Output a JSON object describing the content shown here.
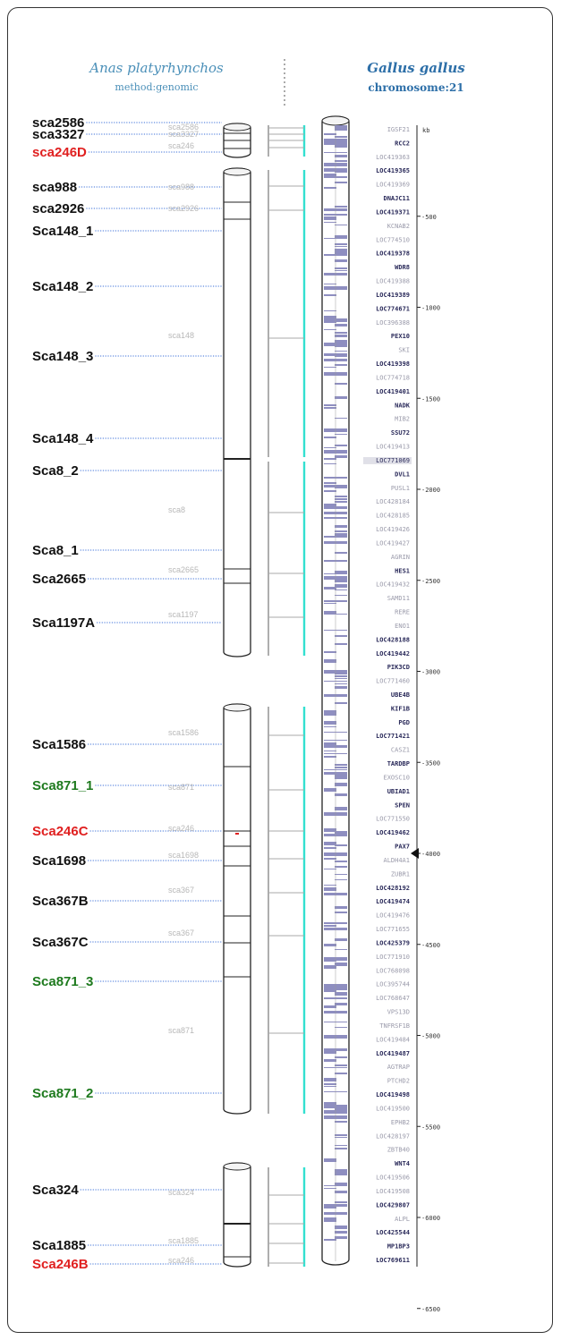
{
  "header": {
    "left_species": "Anas platyrhynchos",
    "left_method": "method:genomic",
    "right_species": "Gallus gallus",
    "right_chromosome": "chromosome:21"
  },
  "scaffold_labels": [
    {
      "text": "sca2586",
      "color": "#111111",
      "kind": "black"
    },
    {
      "text": "sca3327",
      "color": "#111111",
      "kind": "black"
    },
    {
      "text": "sca246D",
      "color": "#e02020",
      "kind": "red"
    },
    {
      "text": "sca988",
      "color": "#111111",
      "kind": "black"
    },
    {
      "text": "sca2926",
      "color": "#111111",
      "kind": "black"
    },
    {
      "text": "Sca148_1",
      "color": "#111111",
      "kind": "black"
    },
    {
      "text": "Sca148_2",
      "color": "#111111",
      "kind": "black"
    },
    {
      "text": "Sca148_3",
      "color": "#111111",
      "kind": "black"
    },
    {
      "text": "Sca148_4",
      "color": "#111111",
      "kind": "black"
    },
    {
      "text": "Sca8_2",
      "color": "#111111",
      "kind": "black"
    },
    {
      "text": "Sca8_1",
      "color": "#111111",
      "kind": "black"
    },
    {
      "text": "Sca2665",
      "color": "#111111",
      "kind": "black"
    },
    {
      "text": "Sca1197A",
      "color": "#111111",
      "kind": "black"
    },
    {
      "text": "Sca1586",
      "color": "#111111",
      "kind": "black"
    },
    {
      "text": "Sca871_1",
      "color": "#1e7a1e",
      "kind": "green"
    },
    {
      "text": "Sca246C",
      "color": "#e02020",
      "kind": "red"
    },
    {
      "text": "Sca1698",
      "color": "#111111",
      "kind": "black"
    },
    {
      "text": "Sca367B",
      "color": "#111111",
      "kind": "black"
    },
    {
      "text": "Sca367C",
      "color": "#111111",
      "kind": "black"
    },
    {
      "text": "Sca871_3",
      "color": "#1e7a1e",
      "kind": "green"
    },
    {
      "text": "Sca871_2",
      "color": "#1e7a1e",
      "kind": "green"
    },
    {
      "text": "Sca324",
      "color": "#111111",
      "kind": "black"
    },
    {
      "text": "Sca1885",
      "color": "#111111",
      "kind": "black"
    },
    {
      "text": "Sca246B",
      "color": "#e02020",
      "kind": "red"
    }
  ],
  "scaffold_ghost_labels": [
    "sca2586",
    "sca3327",
    "sca246",
    "sca988",
    "sca2926",
    "sca148",
    "sca8",
    "sca2665",
    "sca1197",
    "sca1586",
    "sca871",
    "sca246",
    "sca1698",
    "sca367",
    "sca367",
    "sca871",
    "sca324",
    "sca1885",
    "sca246"
  ],
  "genes": [
    {
      "name": "IGSF21",
      "emphasis": "light"
    },
    {
      "name": "RCC2",
      "emphasis": "dark"
    },
    {
      "name": "LOC419363",
      "emphasis": "light"
    },
    {
      "name": "LOC419365",
      "emphasis": "dark"
    },
    {
      "name": "LOC419369",
      "emphasis": "light"
    },
    {
      "name": "DNAJC11",
      "emphasis": "dark"
    },
    {
      "name": "LOC419371",
      "emphasis": "dark"
    },
    {
      "name": "KCNAB2",
      "emphasis": "light"
    },
    {
      "name": "LOC774510",
      "emphasis": "light"
    },
    {
      "name": "LOC419378",
      "emphasis": "dark"
    },
    {
      "name": "WDR8",
      "emphasis": "dark"
    },
    {
      "name": "LOC419388",
      "emphasis": "light"
    },
    {
      "name": "LOC419389",
      "emphasis": "dark"
    },
    {
      "name": "LOC774671",
      "emphasis": "dark"
    },
    {
      "name": "LOC396388",
      "emphasis": "light"
    },
    {
      "name": "PEX10",
      "emphasis": "dark"
    },
    {
      "name": "SKI",
      "emphasis": "light"
    },
    {
      "name": "LOC419398",
      "emphasis": "dark"
    },
    {
      "name": "LOC774718",
      "emphasis": "light"
    },
    {
      "name": "LOC419401",
      "emphasis": "dark"
    },
    {
      "name": "NADK",
      "emphasis": "dark"
    },
    {
      "name": "MIB2",
      "emphasis": "light"
    },
    {
      "name": "SSU72",
      "emphasis": "dark"
    },
    {
      "name": "LOC419413",
      "emphasis": "light"
    },
    {
      "name": "LOC771069",
      "emphasis": "highlight"
    },
    {
      "name": "DVL1",
      "emphasis": "dark"
    },
    {
      "name": "PUSL1",
      "emphasis": "light"
    },
    {
      "name": "LOC428184",
      "emphasis": "light"
    },
    {
      "name": "LOC428185",
      "emphasis": "light"
    },
    {
      "name": "LOC419426",
      "emphasis": "light"
    },
    {
      "name": "LOC419427",
      "emphasis": "light"
    },
    {
      "name": "AGRIN",
      "emphasis": "light"
    },
    {
      "name": "HES1",
      "emphasis": "dark"
    },
    {
      "name": "LOC419432",
      "emphasis": "light"
    },
    {
      "name": "SAMD11",
      "emphasis": "light"
    },
    {
      "name": "RERE",
      "emphasis": "light"
    },
    {
      "name": "ENO1",
      "emphasis": "light"
    },
    {
      "name": "LOC428188",
      "emphasis": "dark"
    },
    {
      "name": "LOC419442",
      "emphasis": "dark"
    },
    {
      "name": "PIK3CD",
      "emphasis": "dark"
    },
    {
      "name": "LOC771460",
      "emphasis": "light"
    },
    {
      "name": "UBE4B",
      "emphasis": "dark"
    },
    {
      "name": "KIF1B",
      "emphasis": "dark"
    },
    {
      "name": "PGD",
      "emphasis": "dark"
    },
    {
      "name": "LOC771421",
      "emphasis": "dark"
    },
    {
      "name": "CASZ1",
      "emphasis": "light"
    },
    {
      "name": "TARDBP",
      "emphasis": "dark"
    },
    {
      "name": "EXOSC10",
      "emphasis": "light"
    },
    {
      "name": "UBIAD1",
      "emphasis": "dark"
    },
    {
      "name": "SPEN",
      "emphasis": "dark"
    },
    {
      "name": "LOC771550",
      "emphasis": "light"
    },
    {
      "name": "LOC419462",
      "emphasis": "dark"
    },
    {
      "name": "PAX7",
      "emphasis": "dark"
    },
    {
      "name": "ALDH4A1",
      "emphasis": "light"
    },
    {
      "name": "ZUBR1",
      "emphasis": "light"
    },
    {
      "name": "LOC428192",
      "emphasis": "dark"
    },
    {
      "name": "LOC419474",
      "emphasis": "dark"
    },
    {
      "name": "LOC419476",
      "emphasis": "light"
    },
    {
      "name": "LOC771655",
      "emphasis": "light"
    },
    {
      "name": "LOC425379",
      "emphasis": "dark"
    },
    {
      "name": "LOC771910",
      "emphasis": "light"
    },
    {
      "name": "LOC768098",
      "emphasis": "light"
    },
    {
      "name": "LOC395744",
      "emphasis": "light"
    },
    {
      "name": "LOC768647",
      "emphasis": "light"
    },
    {
      "name": "VPS13D",
      "emphasis": "light"
    },
    {
      "name": "TNFRSF1B",
      "emphasis": "light"
    },
    {
      "name": "LOC419484",
      "emphasis": "light"
    },
    {
      "name": "LOC419487",
      "emphasis": "dark"
    },
    {
      "name": "AGTRAP",
      "emphasis": "light"
    },
    {
      "name": "PTCHD2",
      "emphasis": "light"
    },
    {
      "name": "LOC419498",
      "emphasis": "dark"
    },
    {
      "name": "LOC419500",
      "emphasis": "light"
    },
    {
      "name": "EPHB2",
      "emphasis": "light"
    },
    {
      "name": "LOC428197",
      "emphasis": "light"
    },
    {
      "name": "ZBTB40",
      "emphasis": "light"
    },
    {
      "name": "WNT4",
      "emphasis": "dark"
    },
    {
      "name": "LOC419506",
      "emphasis": "light"
    },
    {
      "name": "LOC419508",
      "emphasis": "light"
    },
    {
      "name": "LOC429807",
      "emphasis": "dark"
    },
    {
      "name": "ALPL",
      "emphasis": "light"
    },
    {
      "name": "LOC425544",
      "emphasis": "dark"
    },
    {
      "name": "MP1BP3",
      "emphasis": "dark"
    },
    {
      "name": "LOC769611",
      "emphasis": "dark"
    }
  ],
  "scale": {
    "unit": "kb",
    "ticks": [
      "500",
      "1000",
      "1500",
      "2000",
      "2500",
      "3000",
      "3500",
      "4000",
      "4500",
      "5000",
      "5500",
      "6000",
      "6500"
    ]
  },
  "colors": {
    "connector_cyan": "#33e0d0",
    "connector_gray": "#9a9a9a",
    "chromosome_band": "#8e8ec0",
    "gene_dark": "#2a2a5a",
    "gene_light": "#9a9aaa",
    "dotted_line": "#3a6fd8"
  }
}
